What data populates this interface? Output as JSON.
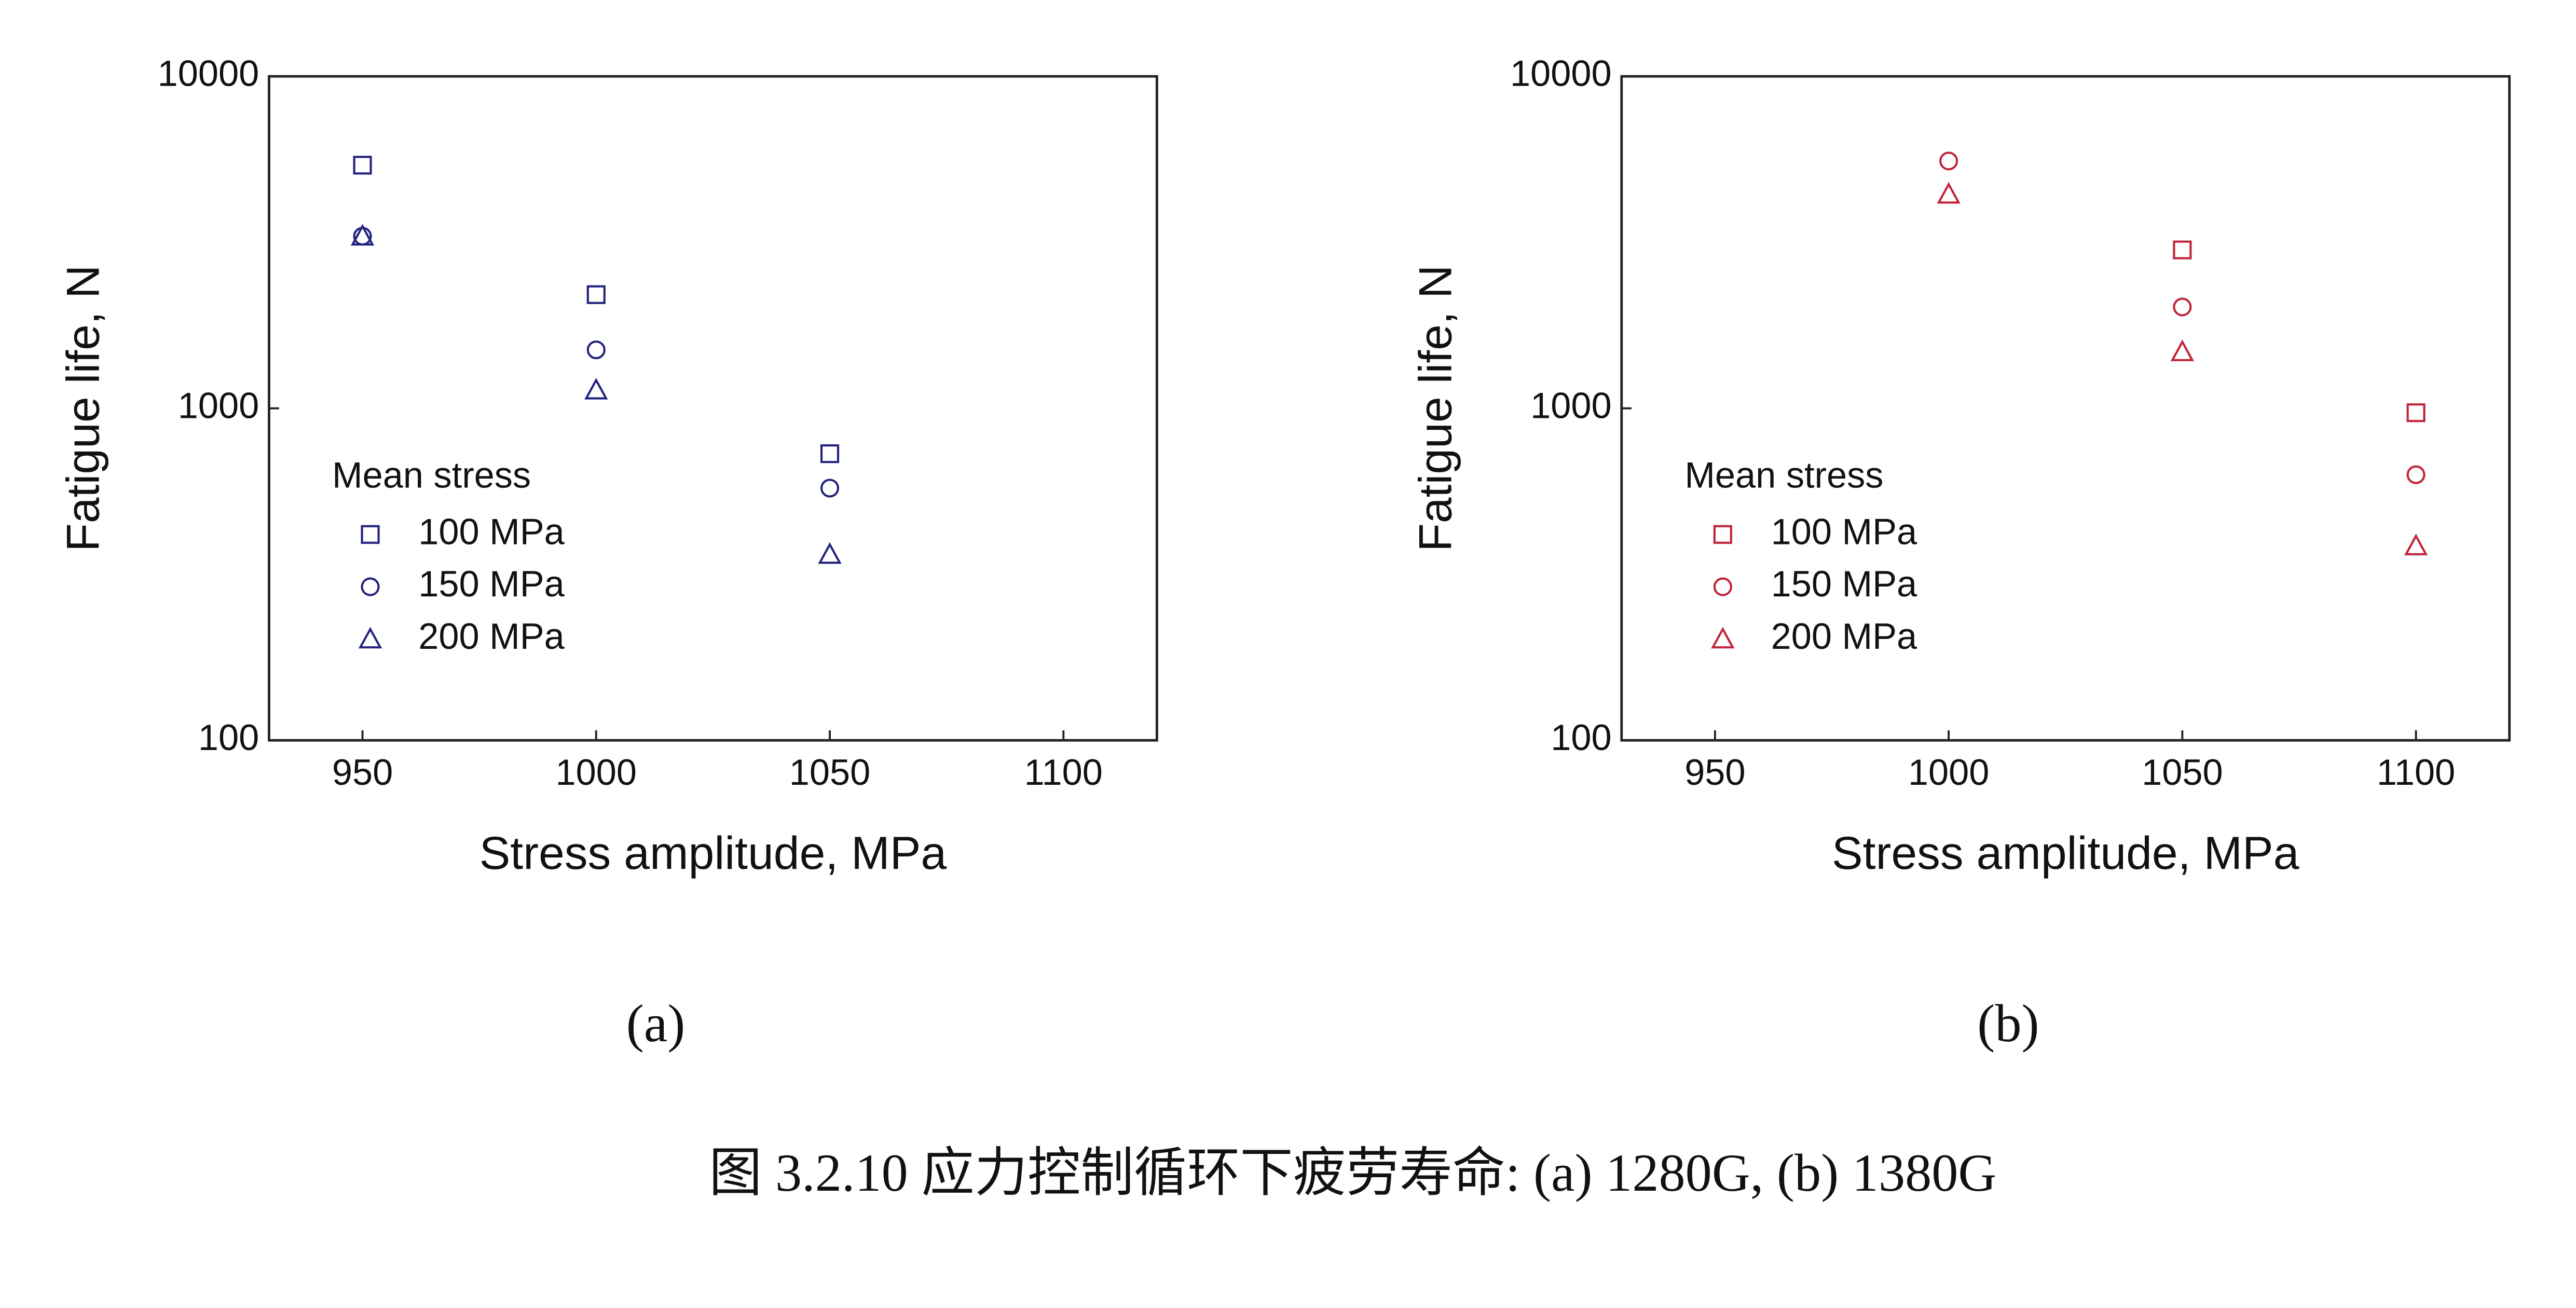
{
  "chart_data": [
    {
      "type": "scatter",
      "panel_label": "(a)",
      "x_label": "Stress amplitude, MPa",
      "y_label": "Fatigue life, N",
      "xlim": [
        930,
        1120
      ],
      "xticks": [
        950,
        1000,
        1050,
        1100
      ],
      "ylim": [
        100,
        10000
      ],
      "yticks": [
        100,
        1000,
        10000
      ],
      "log_y": true,
      "grid": false,
      "legend_title": "Mean stress",
      "legend": "left",
      "series": [
        {
          "name": "100 MPa",
          "color": "#23237f",
          "marker": "square",
          "x": [
            950,
            1000,
            1050
          ],
          "values": [
            5400,
            2200,
            730
          ]
        },
        {
          "name": "150 MPa",
          "color": "#23237f",
          "marker": "circle",
          "x": [
            950,
            1000,
            1050
          ],
          "values": [
            3300,
            1500,
            575
          ]
        },
        {
          "name": "200 MPa",
          "color": "#23237f",
          "marker": "triangle",
          "x": [
            950,
            1000,
            1050
          ],
          "values": [
            3300,
            1135,
            363
          ]
        }
      ]
    },
    {
      "type": "scatter",
      "panel_label": "(b)",
      "x_label": "Stress amplitude, MPa",
      "y_label": "Fatigue life, N",
      "xlim": [
        930,
        1120
      ],
      "xticks": [
        950,
        1000,
        1050,
        1100
      ],
      "ylim": [
        100,
        10000
      ],
      "yticks": [
        100,
        1000,
        10000
      ],
      "log_y": true,
      "grid": false,
      "legend_title": "Mean stress",
      "legend": "left",
      "series": [
        {
          "name": "100 MPa",
          "color": "#c0243a",
          "marker": "square",
          "x": [
            1050,
            1100
          ],
          "values": [
            3000,
            970
          ]
        },
        {
          "name": "150 MPa",
          "color": "#c0243a",
          "marker": "circle",
          "x": [
            1000,
            1050,
            1100
          ],
          "values": [
            5560,
            2020,
            631
          ]
        },
        {
          "name": "200 MPa",
          "color": "#c0243a",
          "marker": "triangle",
          "x": [
            1000,
            1050,
            1100
          ],
          "values": [
            4415,
            1480,
            385
          ]
        }
      ]
    }
  ],
  "caption": "图 3.2.10 应力控制循环下疲劳寿命: (a) 1280G, (b) 1380G"
}
